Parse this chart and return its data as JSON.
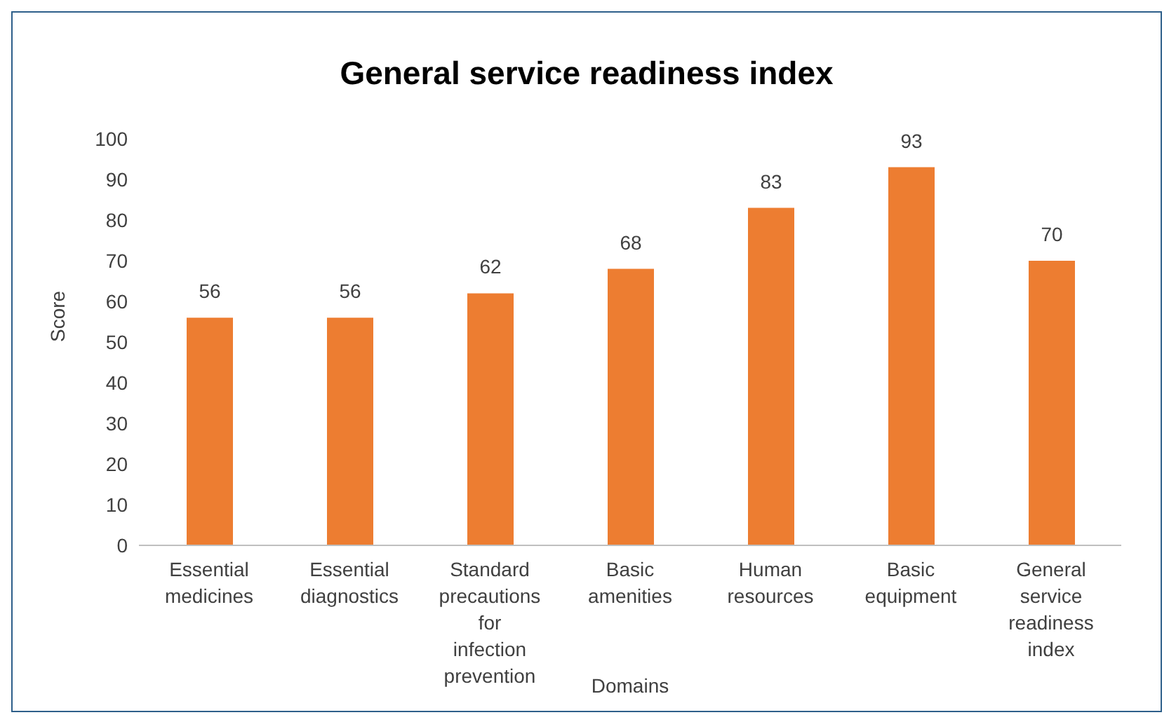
{
  "chart_data": {
    "type": "bar",
    "title": "General service readiness index",
    "xlabel": "Domains",
    "ylabel": "Score",
    "categories": [
      "Essential medicines",
      "Essential diagnostics",
      "Standard precautions for infection prevention",
      "Basic amenities",
      "Human resources",
      "Basic equipment",
      "General service readiness index"
    ],
    "values": [
      56,
      56,
      62,
      68,
      83,
      93,
      70
    ],
    "color": "#ed7d31",
    "ylim": [
      0,
      100
    ],
    "yticks": [
      0,
      10,
      20,
      30,
      40,
      50,
      60,
      70,
      80,
      90,
      100
    ],
    "grid": false,
    "legend": false,
    "data_labels": true
  }
}
